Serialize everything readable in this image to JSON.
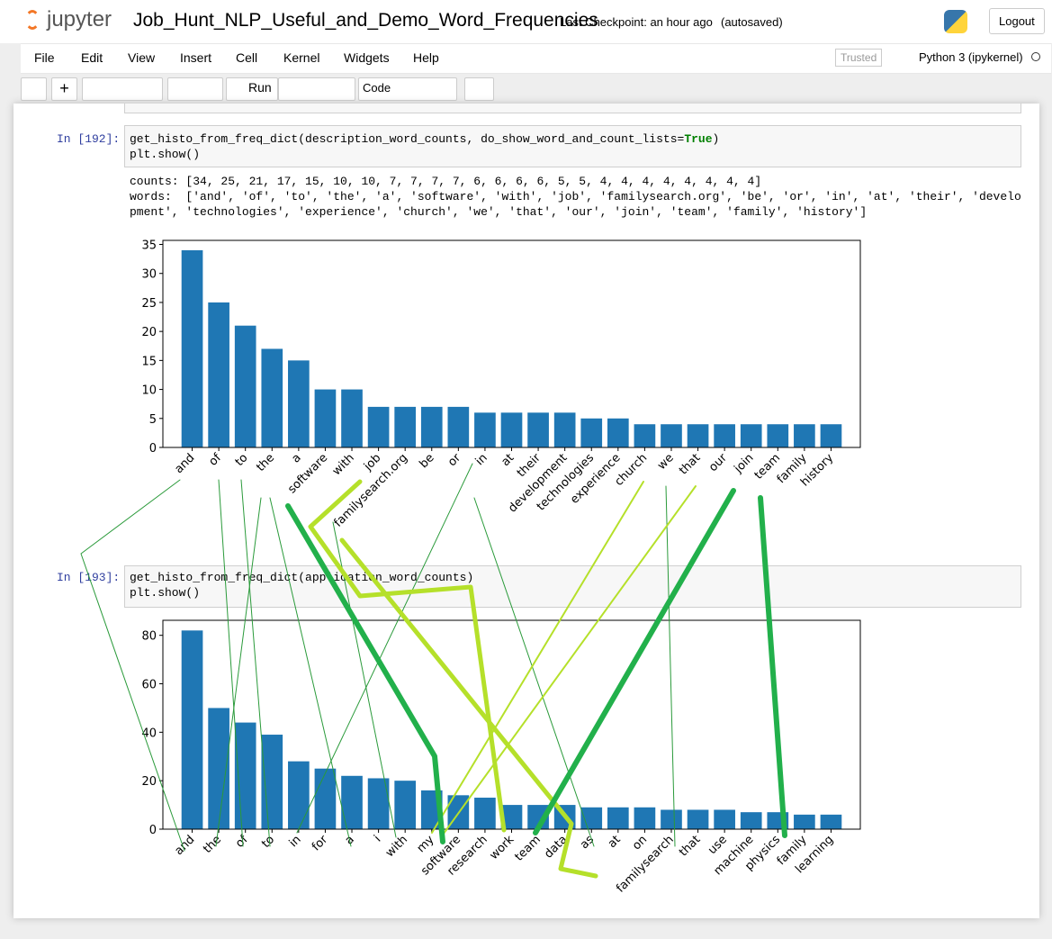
{
  "header": {
    "logo": "jupyter",
    "title": "Job_Hunt_NLP_Useful_and_Demo_Word_Frequencies",
    "checkpoint": "Last Checkpoint: an hour ago",
    "autosaved": "(autosaved)",
    "logout": "Logout"
  },
  "menu": {
    "items": [
      "File",
      "Edit",
      "View",
      "Insert",
      "Cell",
      "Kernel",
      "Widgets",
      "Help"
    ],
    "trusted": "Trusted",
    "kernel": "Python 3 (ipykernel)"
  },
  "toolbar": {
    "run": "Run",
    "cell_type": "Code"
  },
  "cells": [
    {
      "prompt": "In [192]:",
      "code": [
        [
          "get_histo_from_freq_dict(description_word_counts, do_show_word_and_count_lists=",
          "True",
          ")"
        ],
        [
          "plt.show()"
        ]
      ],
      "output": [
        "counts: [34, 25, 21, 17, 15, 10, 10, 7, 7, 7, 7, 6, 6, 6, 6, 5, 5, 4, 4, 4, 4, 4, 4, 4, 4]",
        "words:  ['and', 'of', 'to', 'the', 'a', 'software', 'with', 'job', 'familysearch.org', 'be', 'or', 'in', 'at', 'their', 'develo",
        "pment', 'technologies', 'experience', 'church', 'we', 'that', 'our', 'join', 'team', 'family', 'history']"
      ]
    },
    {
      "prompt": "In [193]:",
      "code": [
        [
          "get_histo_from_freq_dict(application_word_counts)"
        ],
        [
          "plt.show()"
        ]
      ]
    }
  ],
  "chart_data": [
    {
      "type": "bar",
      "categories": [
        "and",
        "of",
        "to",
        "the",
        "a",
        "software",
        "with",
        "job",
        "familysearch.org",
        "be",
        "or",
        "in",
        "at",
        "their",
        "development",
        "technologies",
        "experience",
        "church",
        "we",
        "that",
        "our",
        "join",
        "team",
        "family",
        "history"
      ],
      "values": [
        34,
        25,
        21,
        17,
        15,
        10,
        10,
        7,
        7,
        7,
        7,
        6,
        6,
        6,
        6,
        5,
        5,
        4,
        4,
        4,
        4,
        4,
        4,
        4,
        4
      ],
      "color": "#1f77b4",
      "ylim": [
        0,
        35.7
      ],
      "yticks": [
        0,
        5,
        10,
        15,
        20,
        25,
        30,
        35
      ]
    },
    {
      "type": "bar",
      "categories": [
        "and",
        "the",
        "of",
        "to",
        "in",
        "for",
        "a",
        "i",
        "with",
        "my",
        "software",
        "research",
        "work",
        "team",
        "data",
        "as",
        "at",
        "on",
        "familysearch",
        "that",
        "use",
        "machine",
        "physics",
        "family",
        "learning"
      ],
      "values": [
        82,
        50,
        44,
        39,
        28,
        25,
        22,
        21,
        20,
        16,
        14,
        13,
        10,
        10,
        10,
        9,
        9,
        9,
        8,
        8,
        8,
        7,
        7,
        6,
        6
      ],
      "color": "#1f77b4",
      "ylim": [
        0,
        86.2
      ],
      "yticks": [
        0,
        20,
        40,
        60,
        80
      ]
    }
  ]
}
